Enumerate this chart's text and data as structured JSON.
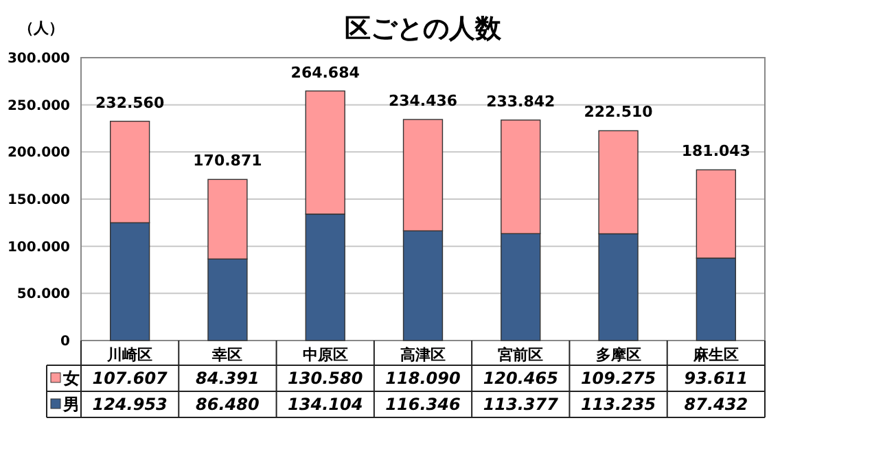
{
  "chart_data": {
    "type": "bar",
    "stacked": true,
    "title": "区ごとの人数",
    "ylabel": "（人）",
    "categories": [
      "川崎区",
      "幸区",
      "中原区",
      "高津区",
      "宮前区",
      "多摩区",
      "麻生区"
    ],
    "series": [
      {
        "name": "男",
        "color": "#3b5f8e",
        "values": [
          124953,
          86480,
          134104,
          116346,
          113377,
          113235,
          87432
        ],
        "value_labels": [
          "124.953",
          "86.480",
          "134.104",
          "116.346",
          "113.377",
          "113.235",
          "87.432"
        ]
      },
      {
        "name": "女",
        "color": "#ff9999",
        "values": [
          107607,
          84391,
          130580,
          118090,
          120465,
          109275,
          93611
        ],
        "value_labels": [
          "107.607",
          "84.391",
          "130.580",
          "118.090",
          "120.465",
          "109.275",
          "93.611"
        ]
      }
    ],
    "totals": [
      "232.560",
      "170.871",
      "264.684",
      "234.436",
      "233.842",
      "222.510",
      "181.043"
    ],
    "ylim": [
      0,
      300000
    ],
    "yticks": [
      0,
      {
        "value": 50000,
        "label": "50.000"
      },
      {
        "value": 100000,
        "label": "100.000"
      },
      {
        "value": 150000,
        "label": "150.000"
      },
      {
        "value": 200000,
        "label": "200.000"
      },
      {
        "value": 250000,
        "label": "250.000"
      },
      {
        "value": 300000,
        "label": "300.000"
      }
    ],
    "grid": "y",
    "legend": "bottom"
  }
}
